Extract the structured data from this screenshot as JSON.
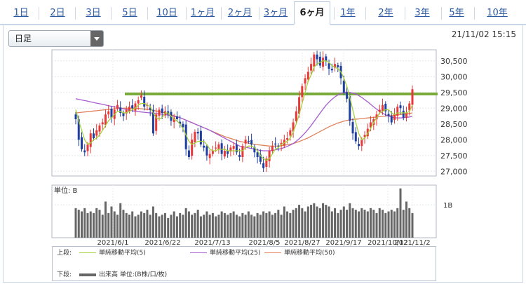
{
  "tabs": [
    "1日",
    "2日",
    "3日",
    "5日",
    "10日",
    "1ヶ月",
    "2ヶ月",
    "3ヶ月",
    "6ヶ月",
    "1年",
    "2年",
    "3年",
    "5年",
    "10年"
  ],
  "active_tab": "6ヶ月",
  "select": {
    "value": "日足"
  },
  "timestamp": "21/11/02 15:15",
  "legend": {
    "upper_label": "上段:",
    "lower_label": "下段:",
    "sma5": "単純移動平均(5)",
    "sma25": "単純移動平均(25)",
    "sma50": "単純移動平均(50)",
    "volume": "出来高 単位:(B株/口/枚)"
  },
  "colors": {
    "up": "#e83838",
    "down": "#1f3fa0",
    "sma5": "#a6d03a",
    "sma25": "#a65ccf",
    "sma50": "#e0825a",
    "hline": "#7aaa3a",
    "volume": "#666666"
  },
  "chart_data": {
    "type": "candlestick",
    "price_ticks": [
      "30,500",
      "30,000",
      "29,500",
      "29,000",
      "28,500",
      "28,000",
      "27,500",
      "27,000"
    ],
    "ylim": [
      26850,
      30850
    ],
    "x_tick_labels": [
      "2021/6/1",
      "2021/6/22",
      "2021/7/13",
      "2021/8/5",
      "2021/8/27",
      "2021/9/17",
      "2021/10/12",
      "2021/11/2"
    ],
    "horizontal_line": 29450,
    "volume_unit_label": "単位: B",
    "volume_tick": "1B",
    "volume_ylim": [
      0,
      1.6
    ],
    "closes": [
      28650,
      28000,
      27700,
      27600,
      27850,
      28200,
      28050,
      28300,
      28450,
      28550,
      28800,
      28900,
      28700,
      28950,
      29100,
      28850,
      28750,
      28950,
      29050,
      29000,
      29150,
      29250,
      29400,
      29050,
      29100,
      28950,
      28200,
      28800,
      28950,
      28850,
      28900,
      28800,
      28600,
      28700,
      28650,
      28500,
      28400,
      27700,
      27450,
      28000,
      28250,
      28200,
      27850,
      27750,
      27500,
      27550,
      27650,
      27750,
      27850,
      27550,
      27650,
      27550,
      27750,
      27800,
      27600,
      27450,
      27800,
      28000,
      27950,
      27850,
      27600,
      27450,
      27300,
      27100,
      27400,
      27650,
      27800,
      27850,
      27800,
      27900,
      28000,
      28050,
      28300,
      28550,
      28900,
      29350,
      29700,
      29950,
      30150,
      30400,
      30700,
      30550,
      30350,
      30600,
      30500,
      30250,
      30200,
      30400,
      30300,
      29950,
      29500,
      29300,
      28600,
      28200,
      27950,
      27800,
      28000,
      28150,
      28350,
      28550,
      28650,
      28800,
      28950,
      29100,
      28900,
      28750,
      28550,
      28800,
      29050,
      29000,
      28700,
      28850,
      29150,
      29600
    ],
    "sma5": [
      28950,
      28600,
      28300,
      28000,
      27850,
      27900,
      28000,
      28050,
      28150,
      28300,
      28450,
      28600,
      28700,
      28800,
      28900,
      28900,
      28850,
      28850,
      28900,
      28950,
      29000,
      29100,
      29150,
      29150,
      29100,
      29050,
      28850,
      28700,
      28650,
      28700,
      28850,
      28850,
      28750,
      28650,
      28600,
      28500,
      28350,
      28150,
      27950,
      27850,
      27900,
      27950,
      27950,
      27950,
      27850,
      27700,
      27650,
      27650,
      27700,
      27700,
      27700,
      27650,
      27650,
      27650,
      27650,
      27650,
      27650,
      27750,
      27800,
      27800,
      27750,
      27650,
      27500,
      27400,
      27350,
      27400,
      27550,
      27700,
      27750,
      27850,
      27900,
      27950,
      28050,
      28250,
      28500,
      28800,
      29150,
      29500,
      29850,
      30050,
      30300,
      30400,
      30450,
      30500,
      30500,
      30450,
      30350,
      30300,
      30250,
      30150,
      29950,
      29700,
      29350,
      28950,
      28550,
      28200,
      28000,
      28050,
      28200,
      28350,
      28550,
      28700,
      28850,
      28900,
      28950,
      28950,
      28850,
      28800,
      28850,
      28850,
      28850,
      28850,
      28900,
      29100
    ],
    "sma25": [
      29300,
      29280,
      29260,
      29240,
      29220,
      29200,
      29180,
      29160,
      29140,
      29120,
      29100,
      29080,
      29060,
      29040,
      29020,
      29000,
      28980,
      28960,
      28940,
      28920,
      28900,
      28890,
      28880,
      28870,
      28860,
      28850,
      28840,
      28830,
      28820,
      28810,
      28800,
      28780,
      28760,
      28740,
      28720,
      28700,
      28660,
      28620,
      28580,
      28540,
      28500,
      28460,
      28420,
      28380,
      28340,
      28300,
      28250,
      28200,
      28150,
      28100,
      28050,
      28000,
      27950,
      27900,
      27850,
      27800,
      27780,
      27760,
      27740,
      27720,
      27700,
      27680,
      27660,
      27650,
      27650,
      27650,
      27660,
      27680,
      27700,
      27720,
      27750,
      27790,
      27830,
      27880,
      27950,
      28030,
      28120,
      28220,
      28330,
      28450,
      28580,
      28710,
      28840,
      28970,
      29090,
      29190,
      29280,
      29360,
      29420,
      29470,
      29500,
      29510,
      29500,
      29480,
      29450,
      29400,
      29340,
      29270,
      29200,
      29120,
      29040,
      28970,
      28900,
      28840,
      28790,
      28750,
      28720,
      28700,
      28690,
      28690,
      28700,
      28710,
      28720,
      28740
    ],
    "sma50": [
      28850,
      28860,
      28870,
      28880,
      28890,
      28900,
      28910,
      28920,
      28930,
      28940,
      28950,
      28960,
      28970,
      28980,
      28990,
      29000,
      29000,
      29000,
      29000,
      29000,
      29000,
      28990,
      28980,
      28970,
      28960,
      28950,
      28930,
      28910,
      28890,
      28870,
      28850,
      28820,
      28790,
      28760,
      28730,
      28700,
      28660,
      28620,
      28580,
      28540,
      28500,
      28460,
      28420,
      28380,
      28340,
      28300,
      28260,
      28220,
      28180,
      28140,
      28100,
      28070,
      28040,
      28010,
      27980,
      27950,
      27930,
      27910,
      27890,
      27870,
      27850,
      27840,
      27830,
      27820,
      27810,
      27800,
      27800,
      27800,
      27800,
      27810,
      27820,
      27840,
      27860,
      27880,
      27910,
      27940,
      27980,
      28020,
      28060,
      28110,
      28160,
      28210,
      28260,
      28310,
      28360,
      28410,
      28450,
      28490,
      28530,
      28560,
      28590,
      28610,
      28630,
      28640,
      28650,
      28660,
      28670,
      28680,
      28690,
      28700,
      28710,
      28720,
      28730,
      28740,
      28750,
      28760,
      28770,
      28780,
      28790,
      28800,
      28810,
      28820,
      28830,
      28850
    ],
    "volumes": [
      0.9,
      0.85,
      0.8,
      0.9,
      0.75,
      0.8,
      0.75,
      0.9,
      0.85,
      0.7,
      1.1,
      0.75,
      0.95,
      0.8,
      0.7,
      1.05,
      0.85,
      0.75,
      0.7,
      0.8,
      0.65,
      0.7,
      0.8,
      0.75,
      0.85,
      0.7,
      0.95,
      0.75,
      0.65,
      0.7,
      0.75,
      0.6,
      0.7,
      0.8,
      0.65,
      0.75,
      0.7,
      0.9,
      0.8,
      0.7,
      0.75,
      0.85,
      0.65,
      0.7,
      0.8,
      0.7,
      0.75,
      0.65,
      0.7,
      0.8,
      0.75,
      0.7,
      0.75,
      0.8,
      0.7,
      0.65,
      0.75,
      0.7,
      0.8,
      0.7,
      0.65,
      0.75,
      0.7,
      0.8,
      0.75,
      0.8,
      0.7,
      0.75,
      0.85,
      0.7,
      0.95,
      0.8,
      0.75,
      0.85,
      0.9,
      1.0,
      0.9,
      0.8,
      0.95,
      1.0,
      1.05,
      0.95,
      0.9,
      1.05,
      1.0,
      0.95,
      0.8,
      0.9,
      0.75,
      0.85,
      0.95,
      0.85,
      1.05,
      0.9,
      0.85,
      0.8,
      0.9,
      0.85,
      0.8,
      0.9,
      0.85,
      0.75,
      0.9,
      0.85,
      0.75,
      0.8,
      0.85,
      0.8,
      0.9,
      1.5,
      0.85,
      1.1,
      0.9,
      0.75
    ]
  }
}
